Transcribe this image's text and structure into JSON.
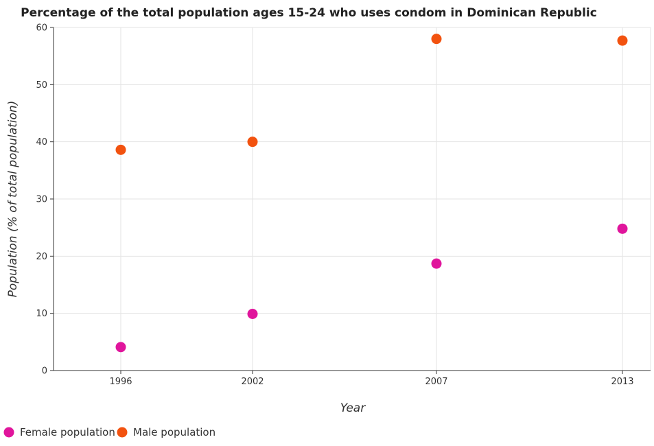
{
  "chart_data": {
    "type": "scatter",
    "title": "Percentage of the total population ages 15-24 who uses condom in Dominican Republic",
    "xlabel": "Year",
    "ylabel": "Population (% of total population)",
    "categories": [
      "1996",
      "2002",
      "2007",
      "2013"
    ],
    "ylim": [
      0,
      60
    ],
    "yticks": [
      "0",
      "10",
      "20",
      "30",
      "40",
      "50",
      "60"
    ],
    "grid": true,
    "legend_position": "bottom-left",
    "series": [
      {
        "name": "Female population",
        "color": "#e0159c",
        "values": [
          4.1,
          9.9,
          18.7,
          24.8
        ]
      },
      {
        "name": "Male population",
        "color": "#f2520f",
        "values": [
          38.6,
          40.0,
          58.0,
          57.7
        ]
      }
    ]
  }
}
